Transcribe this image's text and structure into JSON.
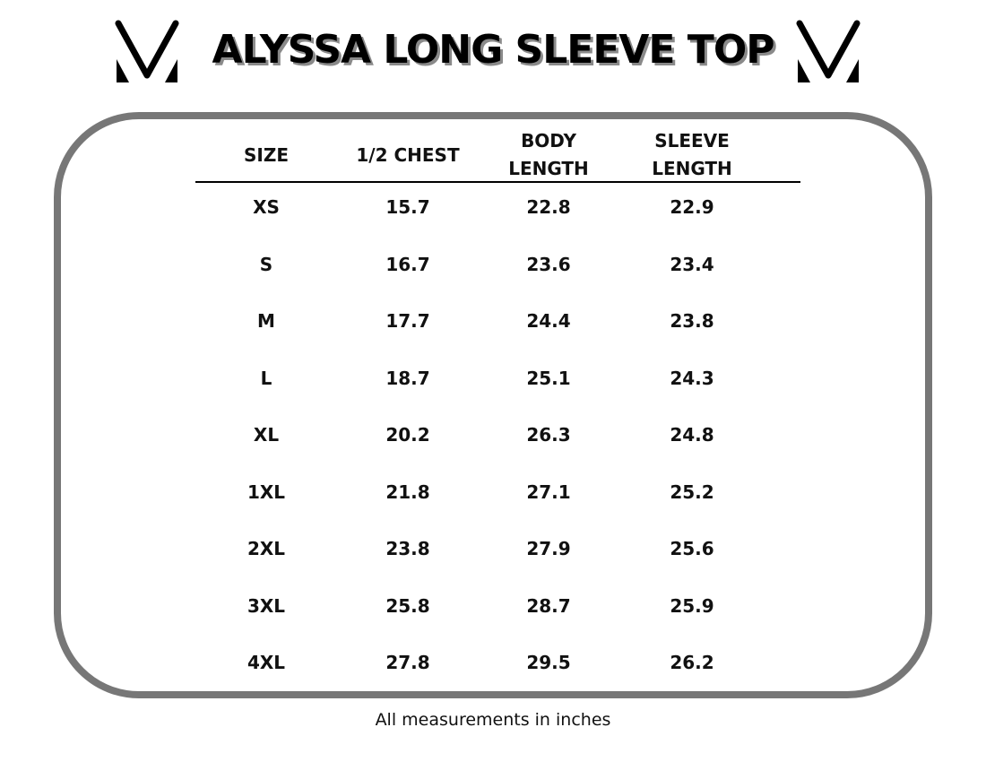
{
  "title": "ALYSSA LONG SLEEVE TOP",
  "logo": {
    "icon": "v-monogram-icon"
  },
  "headers": [
    "SIZE",
    "1/2 CHEST",
    "BODY\nLENGTH",
    "SLEEVE\nLENGTH"
  ],
  "rows": [
    [
      "XS",
      "15.7",
      "22.8",
      "22.9"
    ],
    [
      "S",
      "16.7",
      "23.6",
      "23.4"
    ],
    [
      "M",
      "17.7",
      "24.4",
      "23.8"
    ],
    [
      "L",
      "18.7",
      "25.1",
      "24.3"
    ],
    [
      "XL",
      "20.2",
      "26.3",
      "24.8"
    ],
    [
      "1XL",
      "21.8",
      "27.1",
      "25.2"
    ],
    [
      "2XL",
      "23.8",
      "27.9",
      "25.6"
    ],
    [
      "3XL",
      "25.8",
      "28.7",
      "25.9"
    ],
    [
      "4XL",
      "27.8",
      "29.5",
      "26.2"
    ]
  ],
  "footnote": "All measurements in inches"
}
